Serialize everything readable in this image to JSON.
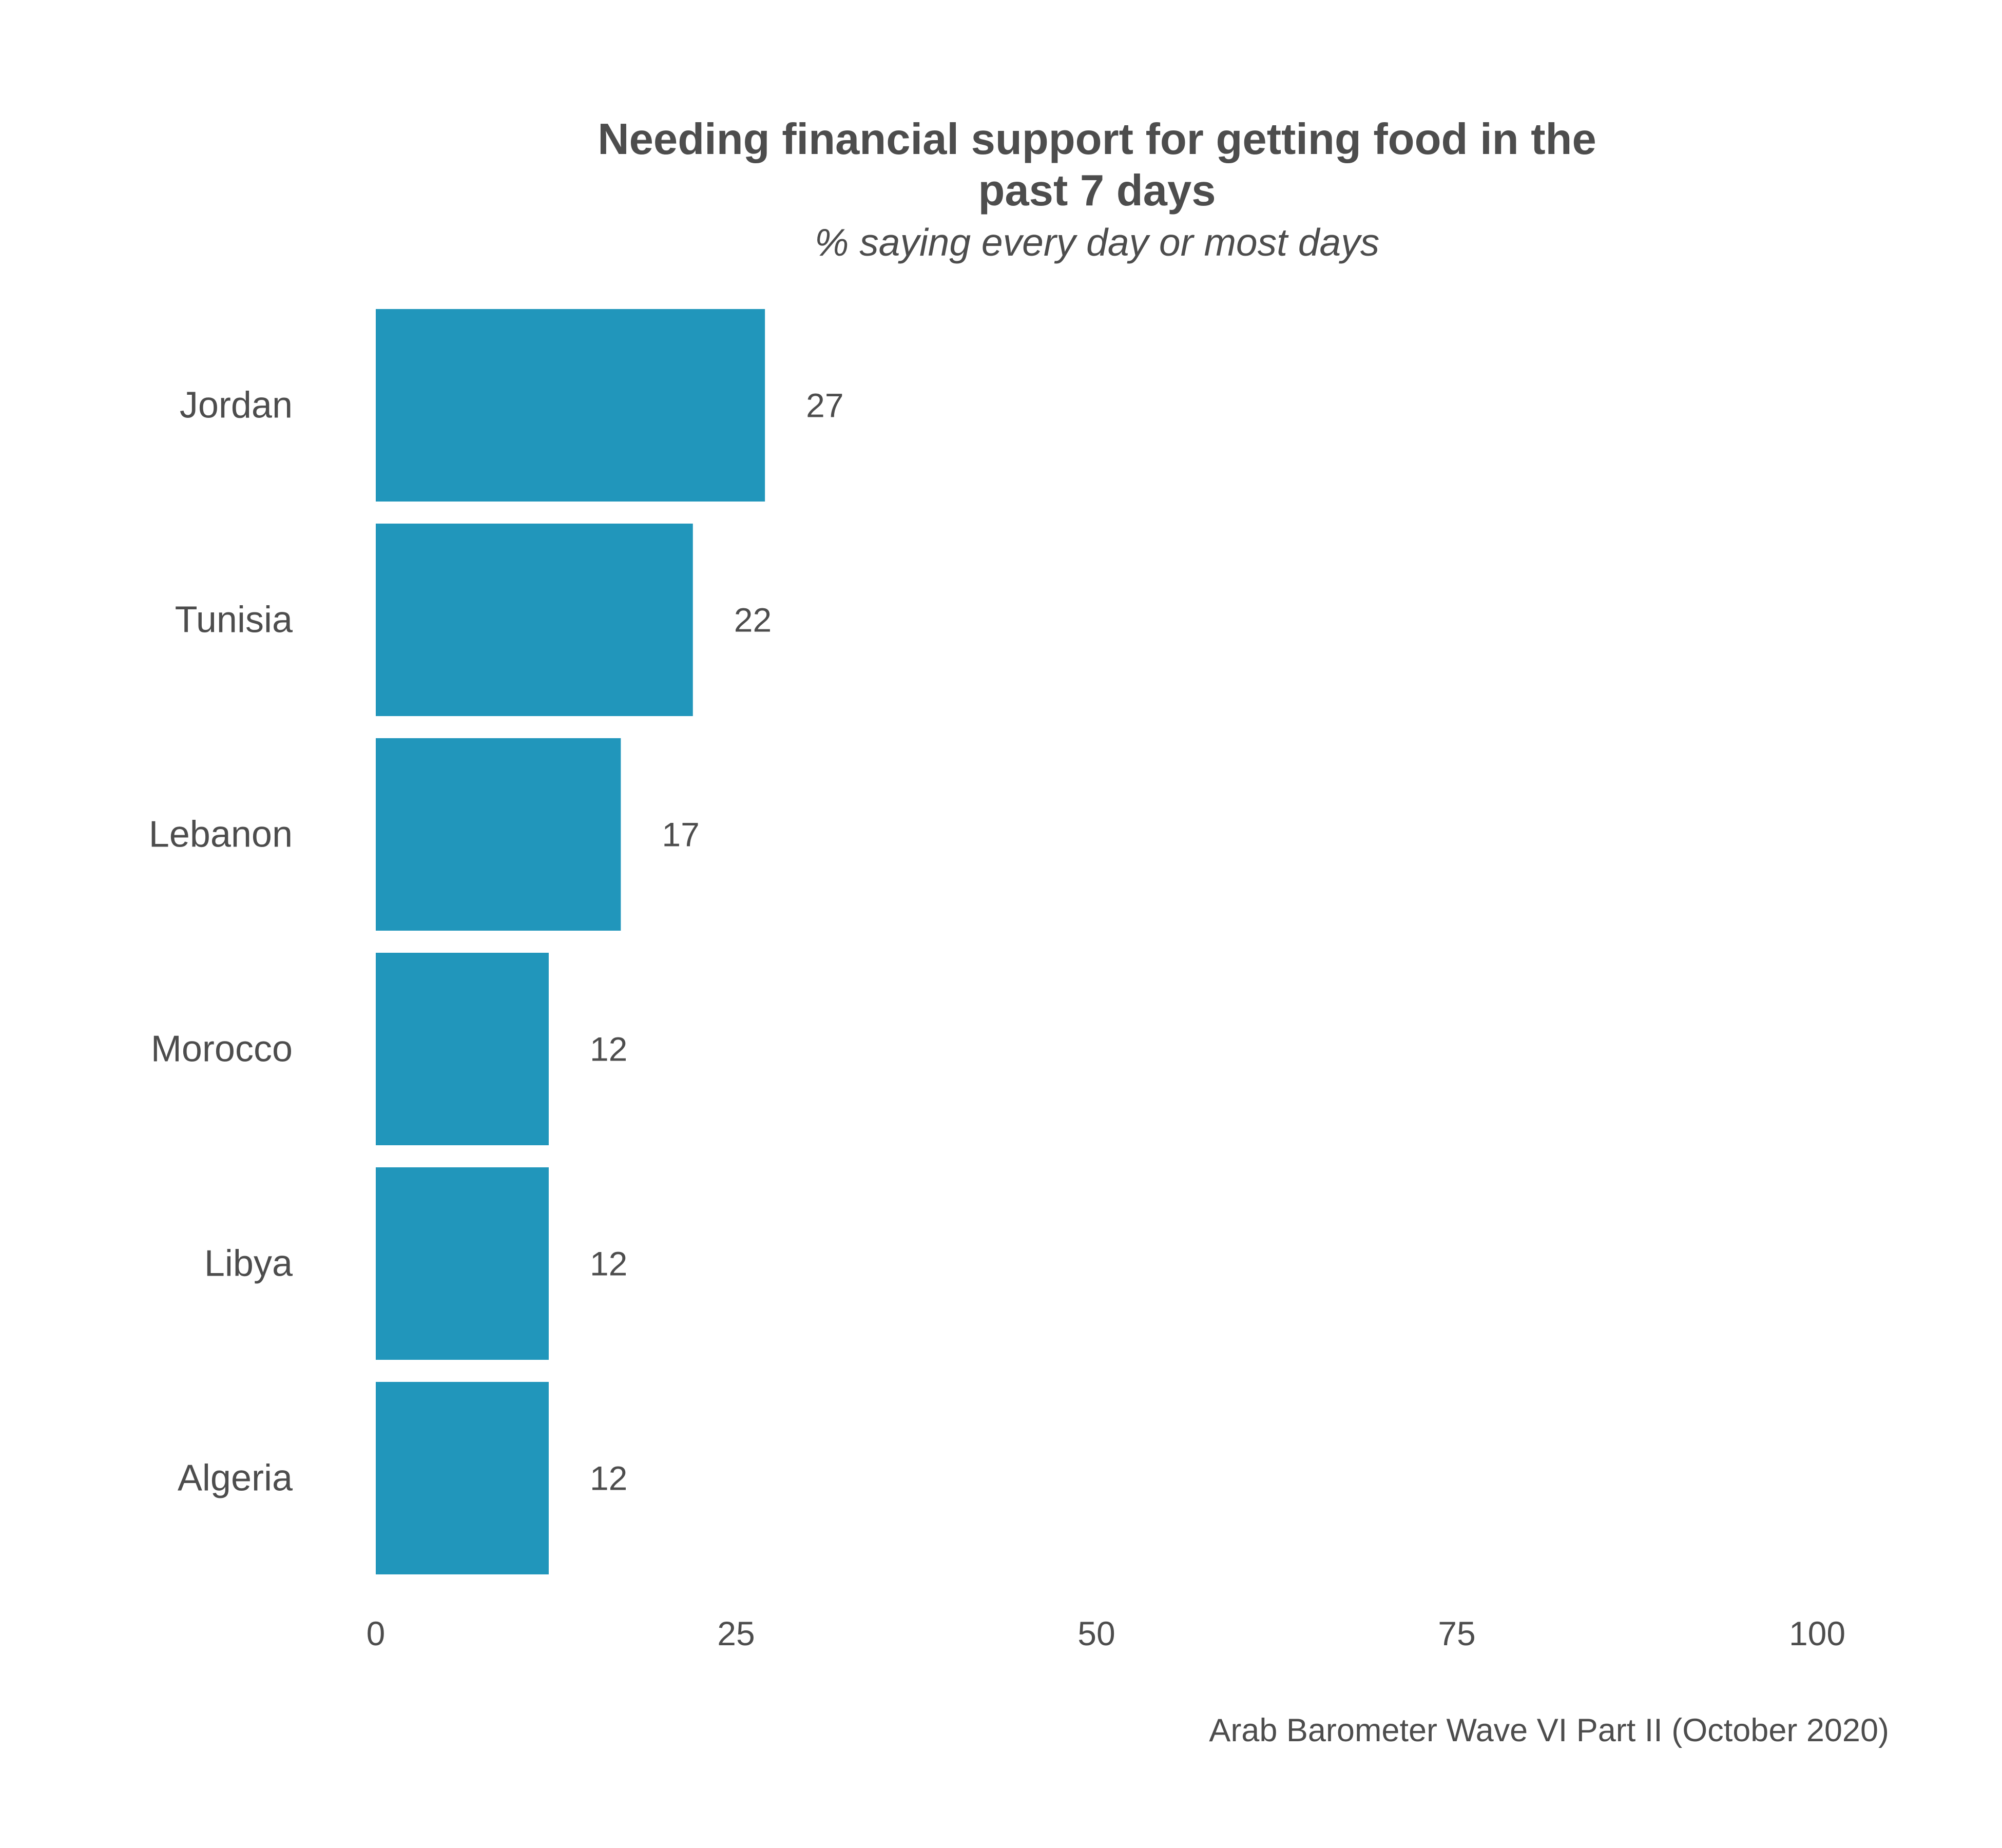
{
  "chart_data": {
    "type": "bar",
    "orientation": "horizontal",
    "title": "Needing financial support for getting food in the past 7 days",
    "title_lines": [
      "Needing financial support for getting food in the",
      "past 7 days"
    ],
    "subtitle": "% saying every day or most days",
    "caption": "Arab Barometer Wave VI Part II (October 2020)",
    "categories": [
      "Jordan",
      "Tunisia",
      "Lebanon",
      "Morocco",
      "Libya",
      "Algeria"
    ],
    "values": [
      27,
      22,
      17,
      12,
      12,
      12
    ],
    "value_labels": [
      "27",
      "22",
      "17",
      "12",
      "12",
      "12"
    ],
    "xlim": [
      0,
      100
    ],
    "xticks": [
      0,
      25,
      50,
      75,
      100
    ],
    "xtick_labels": [
      "0",
      "25",
      "50",
      "75",
      "100"
    ],
    "xlabel": "",
    "ylabel": "",
    "grid": false,
    "legend": "none",
    "bar_color": "#2196bb"
  }
}
